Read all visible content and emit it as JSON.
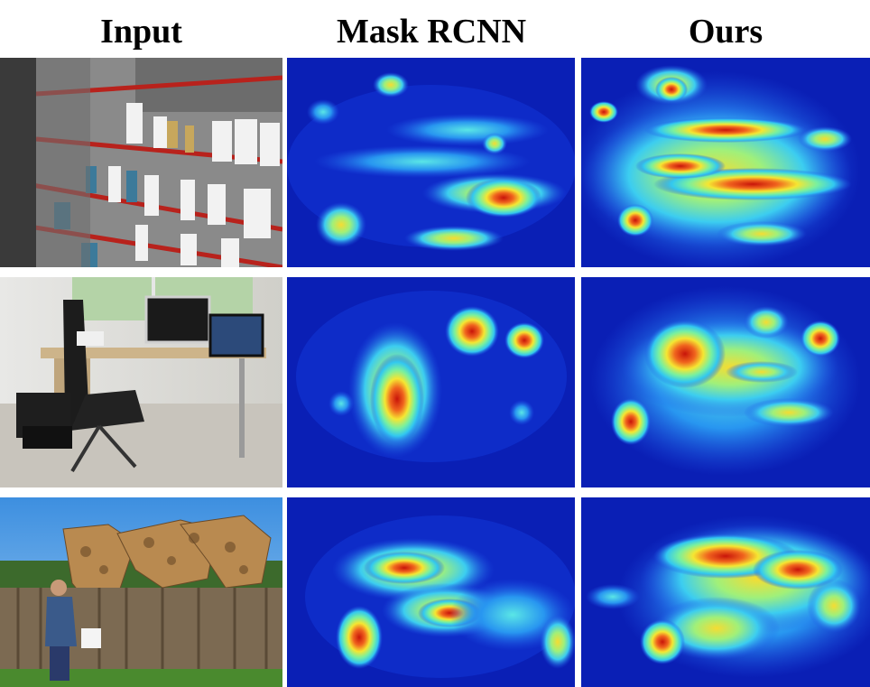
{
  "columns": {
    "input": "Input",
    "mask_rcnn": "Mask RCNN",
    "ours": "Ours"
  },
  "rows": [
    {
      "scene": "store shelves with bottles"
    },
    {
      "scene": "office desk with chair and monitors"
    },
    {
      "scene": "woman feeding giraffes over a fence"
    }
  ],
  "colors": {
    "heat_low": "#0a1fb5",
    "heat_mid": "#38d8f0",
    "heat_high": "#d11a0a"
  }
}
